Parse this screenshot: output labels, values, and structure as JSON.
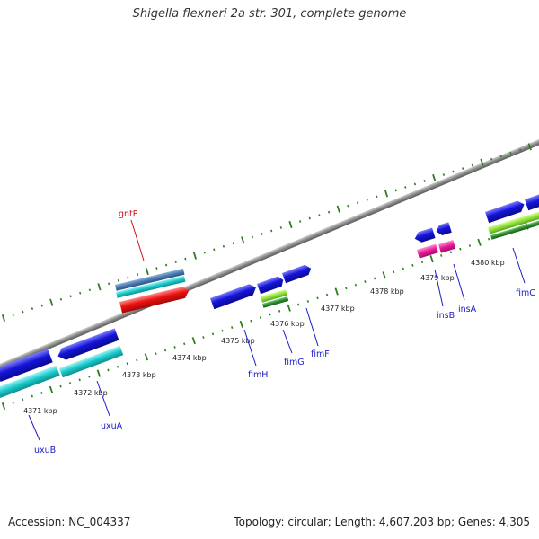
{
  "title": "Shigella flexneri 2a str. 301, complete genome",
  "footer": {
    "accession": "Accession: NC_004337",
    "summary": "Topology: circular; Length: 4,607,203 bp; Genes: 4,305"
  },
  "colors": {
    "backbone": "#8a8a8a",
    "tick": "#2e7d1f",
    "gene_label": "#1a1acc",
    "rna_label": "#cc1111",
    "cds_blue": "#1414d8",
    "cyan": "#19c8c8",
    "steel": "#4a7ab0",
    "red": "#ee1111",
    "lime": "#8fe03a",
    "darkgreen": "#2e8a2e",
    "magenta": "#e8189a"
  },
  "scale": {
    "unit": "kbp",
    "labels": [
      "4371 kbp",
      "4372 kbp",
      "4373 kbp",
      "4374 kbp",
      "4375 kbp",
      "4376 kbp",
      "4377 kbp",
      "4378 kbp",
      "4379 kbp",
      "4380 kbp"
    ]
  },
  "gene_labels": {
    "uxuB": "uxuB",
    "uxuA": "uxuA",
    "gntP": "gntP",
    "fimH": "fimH",
    "fimG": "fimG",
    "fimF": "fimF",
    "insB": "insB",
    "insA": "insA",
    "fimC": "fimC"
  }
}
